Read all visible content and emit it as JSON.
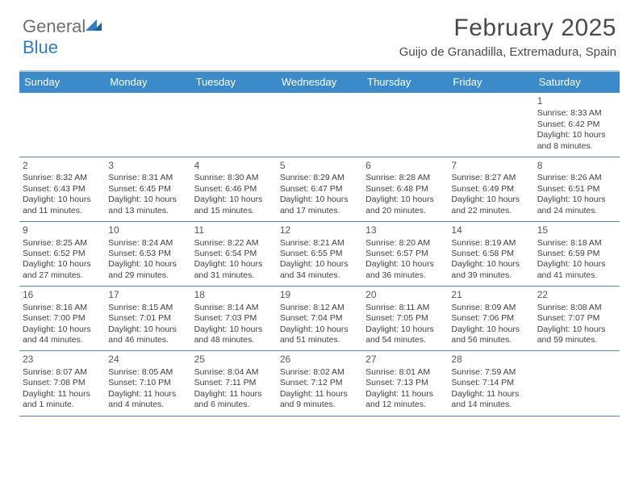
{
  "brand": {
    "word1": "General",
    "word2": "Blue"
  },
  "title": "February 2025",
  "location": "Guijo de Granadilla, Extremadura, Spain",
  "colors": {
    "header_bar": "#3b8bca",
    "header_text": "#ffffff",
    "row_divider": "#5a7fa3",
    "top_rule": "#b9c8d6",
    "brand_gray": "#6f6f6f",
    "brand_blue": "#2f7fc2",
    "body_text": "#3f3f3f"
  },
  "day_labels": [
    "Sunday",
    "Monday",
    "Tuesday",
    "Wednesday",
    "Thursday",
    "Friday",
    "Saturday"
  ],
  "weeks": [
    [
      null,
      null,
      null,
      null,
      null,
      null,
      {
        "n": "1",
        "sunrise": "Sunrise: 8:33 AM",
        "sunset": "Sunset: 6:42 PM",
        "day1": "Daylight: 10 hours",
        "day2": "and 8 minutes."
      }
    ],
    [
      {
        "n": "2",
        "sunrise": "Sunrise: 8:32 AM",
        "sunset": "Sunset: 6:43 PM",
        "day1": "Daylight: 10 hours",
        "day2": "and 11 minutes."
      },
      {
        "n": "3",
        "sunrise": "Sunrise: 8:31 AM",
        "sunset": "Sunset: 6:45 PM",
        "day1": "Daylight: 10 hours",
        "day2": "and 13 minutes."
      },
      {
        "n": "4",
        "sunrise": "Sunrise: 8:30 AM",
        "sunset": "Sunset: 6:46 PM",
        "day1": "Daylight: 10 hours",
        "day2": "and 15 minutes."
      },
      {
        "n": "5",
        "sunrise": "Sunrise: 8:29 AM",
        "sunset": "Sunset: 6:47 PM",
        "day1": "Daylight: 10 hours",
        "day2": "and 17 minutes."
      },
      {
        "n": "6",
        "sunrise": "Sunrise: 8:28 AM",
        "sunset": "Sunset: 6:48 PM",
        "day1": "Daylight: 10 hours",
        "day2": "and 20 minutes."
      },
      {
        "n": "7",
        "sunrise": "Sunrise: 8:27 AM",
        "sunset": "Sunset: 6:49 PM",
        "day1": "Daylight: 10 hours",
        "day2": "and 22 minutes."
      },
      {
        "n": "8",
        "sunrise": "Sunrise: 8:26 AM",
        "sunset": "Sunset: 6:51 PM",
        "day1": "Daylight: 10 hours",
        "day2": "and 24 minutes."
      }
    ],
    [
      {
        "n": "9",
        "sunrise": "Sunrise: 8:25 AM",
        "sunset": "Sunset: 6:52 PM",
        "day1": "Daylight: 10 hours",
        "day2": "and 27 minutes."
      },
      {
        "n": "10",
        "sunrise": "Sunrise: 8:24 AM",
        "sunset": "Sunset: 6:53 PM",
        "day1": "Daylight: 10 hours",
        "day2": "and 29 minutes."
      },
      {
        "n": "11",
        "sunrise": "Sunrise: 8:22 AM",
        "sunset": "Sunset: 6:54 PM",
        "day1": "Daylight: 10 hours",
        "day2": "and 31 minutes."
      },
      {
        "n": "12",
        "sunrise": "Sunrise: 8:21 AM",
        "sunset": "Sunset: 6:55 PM",
        "day1": "Daylight: 10 hours",
        "day2": "and 34 minutes."
      },
      {
        "n": "13",
        "sunrise": "Sunrise: 8:20 AM",
        "sunset": "Sunset: 6:57 PM",
        "day1": "Daylight: 10 hours",
        "day2": "and 36 minutes."
      },
      {
        "n": "14",
        "sunrise": "Sunrise: 8:19 AM",
        "sunset": "Sunset: 6:58 PM",
        "day1": "Daylight: 10 hours",
        "day2": "and 39 minutes."
      },
      {
        "n": "15",
        "sunrise": "Sunrise: 8:18 AM",
        "sunset": "Sunset: 6:59 PM",
        "day1": "Daylight: 10 hours",
        "day2": "and 41 minutes."
      }
    ],
    [
      {
        "n": "16",
        "sunrise": "Sunrise: 8:16 AM",
        "sunset": "Sunset: 7:00 PM",
        "day1": "Daylight: 10 hours",
        "day2": "and 44 minutes."
      },
      {
        "n": "17",
        "sunrise": "Sunrise: 8:15 AM",
        "sunset": "Sunset: 7:01 PM",
        "day1": "Daylight: 10 hours",
        "day2": "and 46 minutes."
      },
      {
        "n": "18",
        "sunrise": "Sunrise: 8:14 AM",
        "sunset": "Sunset: 7:03 PM",
        "day1": "Daylight: 10 hours",
        "day2": "and 48 minutes."
      },
      {
        "n": "19",
        "sunrise": "Sunrise: 8:12 AM",
        "sunset": "Sunset: 7:04 PM",
        "day1": "Daylight: 10 hours",
        "day2": "and 51 minutes."
      },
      {
        "n": "20",
        "sunrise": "Sunrise: 8:11 AM",
        "sunset": "Sunset: 7:05 PM",
        "day1": "Daylight: 10 hours",
        "day2": "and 54 minutes."
      },
      {
        "n": "21",
        "sunrise": "Sunrise: 8:09 AM",
        "sunset": "Sunset: 7:06 PM",
        "day1": "Daylight: 10 hours",
        "day2": "and 56 minutes."
      },
      {
        "n": "22",
        "sunrise": "Sunrise: 8:08 AM",
        "sunset": "Sunset: 7:07 PM",
        "day1": "Daylight: 10 hours",
        "day2": "and 59 minutes."
      }
    ],
    [
      {
        "n": "23",
        "sunrise": "Sunrise: 8:07 AM",
        "sunset": "Sunset: 7:08 PM",
        "day1": "Daylight: 11 hours",
        "day2": "and 1 minute."
      },
      {
        "n": "24",
        "sunrise": "Sunrise: 8:05 AM",
        "sunset": "Sunset: 7:10 PM",
        "day1": "Daylight: 11 hours",
        "day2": "and 4 minutes."
      },
      {
        "n": "25",
        "sunrise": "Sunrise: 8:04 AM",
        "sunset": "Sunset: 7:11 PM",
        "day1": "Daylight: 11 hours",
        "day2": "and 6 minutes."
      },
      {
        "n": "26",
        "sunrise": "Sunrise: 8:02 AM",
        "sunset": "Sunset: 7:12 PM",
        "day1": "Daylight: 11 hours",
        "day2": "and 9 minutes."
      },
      {
        "n": "27",
        "sunrise": "Sunrise: 8:01 AM",
        "sunset": "Sunset: 7:13 PM",
        "day1": "Daylight: 11 hours",
        "day2": "and 12 minutes."
      },
      {
        "n": "28",
        "sunrise": "Sunrise: 7:59 AM",
        "sunset": "Sunset: 7:14 PM",
        "day1": "Daylight: 11 hours",
        "day2": "and 14 minutes."
      },
      null
    ]
  ]
}
